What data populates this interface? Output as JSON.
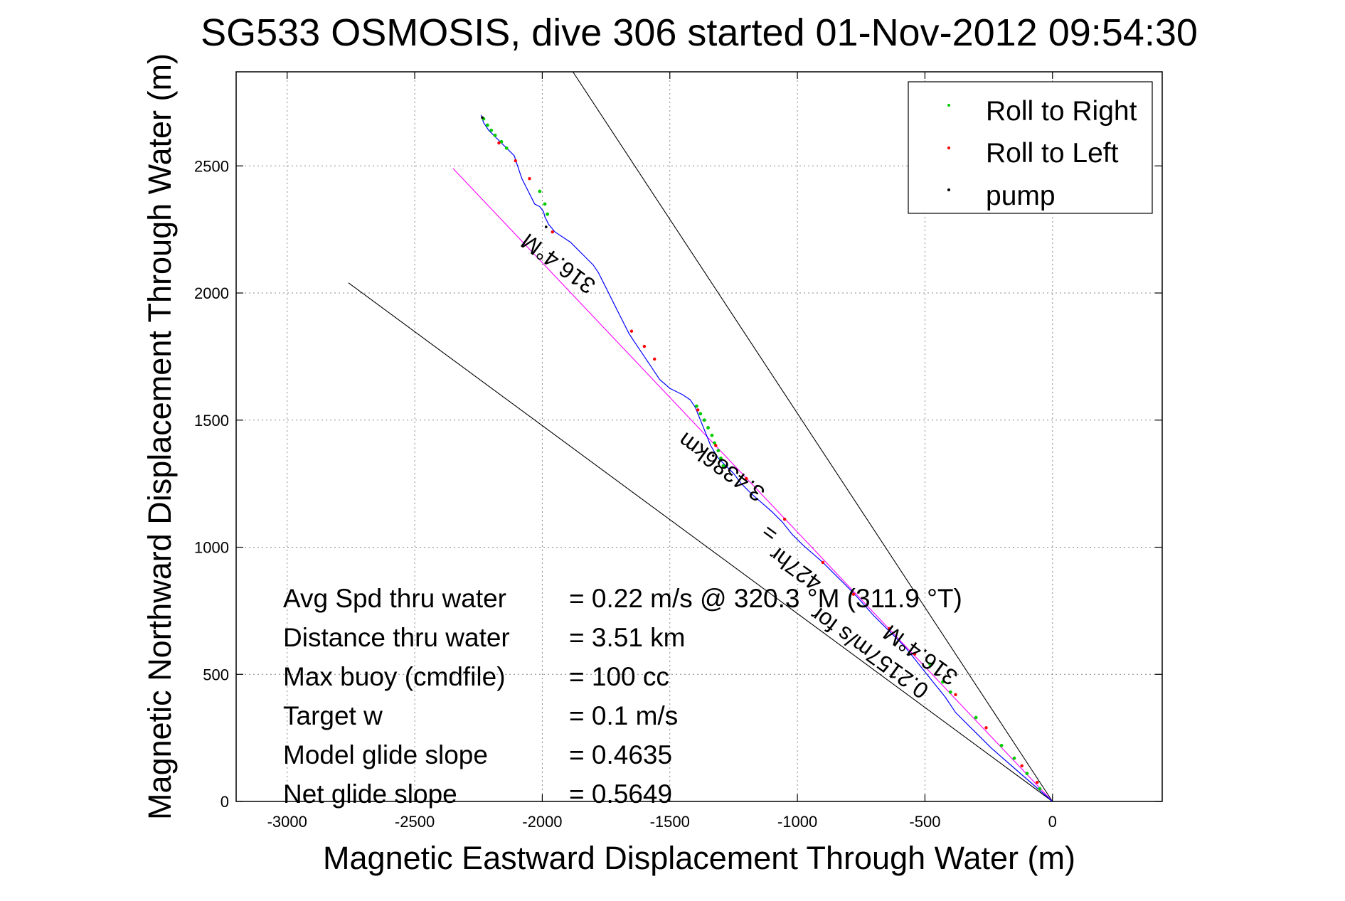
{
  "chart_data": {
    "type": "line",
    "title": "SG533 OSMOSIS, dive 306 started 01-Nov-2012 09:54:30",
    "xlabel": "Magnetic Eastward Displacement Through Water (m)",
    "ylabel": "Magnetic Northward Displacement Through Water (m)",
    "xlim": [
      -3200,
      430
    ],
    "ylim": [
      0,
      2870
    ],
    "xticks": [
      -3000,
      -2500,
      -2000,
      -1500,
      -1000,
      -500,
      0
    ],
    "yticks": [
      0,
      500,
      1000,
      1500,
      2000,
      2500
    ],
    "xtick_labels": [
      "-3000",
      "-2500",
      "-2000",
      "-1500",
      "-1000",
      "-500",
      "0"
    ],
    "ytick_labels": [
      "0",
      "500",
      "1000",
      "1500",
      "2000",
      "2500"
    ],
    "grid": true,
    "legend_position": "top-right",
    "legend": [
      {
        "label": "Roll to Right",
        "color": "#00cc00"
      },
      {
        "label": "Roll to Left",
        "color": "#ff0000"
      },
      {
        "label": "pump",
        "color": "#000000"
      }
    ],
    "series": [
      {
        "name": "track",
        "color": "#0000ff",
        "x": [
          0,
          -40,
          -80,
          -120,
          -160,
          -200,
          -240,
          -280,
          -330,
          -380,
          -420,
          -460,
          -500,
          -540,
          -580,
          -620,
          -660,
          -700,
          -740,
          -780,
          -820,
          -860,
          -900,
          -940,
          -980,
          -1020,
          -1060,
          -1100,
          -1140,
          -1180,
          -1220,
          -1250,
          -1280,
          -1310,
          -1340,
          -1360,
          -1380,
          -1400,
          -1420,
          -1450,
          -1500,
          -1540,
          -1560,
          -1580,
          -1600,
          -1620,
          -1640,
          -1660,
          -1680,
          -1700,
          -1720,
          -1740,
          -1760,
          -1780,
          -1800,
          -1830,
          -1860,
          -1890,
          -1920,
          -1950,
          -1975,
          -1990,
          -1995,
          -2010,
          -2030,
          -2040,
          -2060,
          -2080,
          -2090,
          -2100,
          -2110,
          -2130,
          -2150,
          -2170,
          -2190,
          -2210,
          -2230,
          -2240
        ],
        "y": [
          0,
          35,
          70,
          105,
          140,
          175,
          210,
          250,
          300,
          350,
          410,
          460,
          510,
          560,
          610,
          650,
          690,
          730,
          775,
          820,
          860,
          900,
          940,
          975,
          1010,
          1050,
          1100,
          1140,
          1175,
          1210,
          1250,
          1290,
          1320,
          1350,
          1400,
          1450,
          1500,
          1550,
          1580,
          1600,
          1625,
          1660,
          1690,
          1720,
          1750,
          1780,
          1810,
          1840,
          1880,
          1920,
          1960,
          2000,
          2040,
          2080,
          2110,
          2140,
          2170,
          2200,
          2220,
          2240,
          2270,
          2300,
          2320,
          2340,
          2350,
          2370,
          2410,
          2450,
          2480,
          2510,
          2540,
          2560,
          2580,
          2600,
          2620,
          2640,
          2670,
          2700
        ]
      }
    ],
    "reference_lines": [
      {
        "name": "ref-line-steep",
        "color": "#000000",
        "x": [
          0,
          -1880
        ],
        "y": [
          0,
          2870
        ]
      },
      {
        "name": "ref-line-middle",
        "color": "#ff00ff",
        "x": [
          0,
          -2350
        ],
        "y": [
          0,
          2490
        ]
      },
      {
        "name": "ref-line-shallow",
        "color": "#000000",
        "x": [
          0,
          -2760
        ],
        "y": [
          0,
          2040
        ]
      }
    ],
    "roll_right_points": {
      "color": "#00cc00",
      "x": [
        -2230,
        -2215,
        -2200,
        -2185,
        -2160,
        -2140,
        -2010,
        -1990,
        -1980,
        -1395,
        -1380,
        -1365,
        -1350,
        -1335,
        -1325,
        -1310,
        -1300,
        -1290,
        -480,
        -430,
        -400,
        -300,
        -200,
        -150,
        -100,
        -50
      ],
      "y": [
        2685,
        2660,
        2640,
        2620,
        2595,
        2570,
        2400,
        2350,
        2310,
        1555,
        1525,
        1500,
        1470,
        1440,
        1410,
        1380,
        1350,
        1320,
        540,
        470,
        430,
        330,
        220,
        170,
        110,
        50
      ]
    },
    "roll_left_points": {
      "color": "#ff0000",
      "x": [
        -2170,
        -2105,
        -2050,
        -1960,
        -1650,
        -1600,
        -1560,
        -1390,
        -1320,
        -1200,
        -1050,
        -900,
        -780,
        -640,
        -540,
        -380,
        -260,
        -120,
        -60
      ],
      "y": [
        2590,
        2520,
        2450,
        2240,
        1850,
        1790,
        1740,
        1540,
        1400,
        1270,
        1110,
        940,
        815,
        680,
        580,
        420,
        290,
        140,
        75
      ]
    },
    "pump_points": {
      "color": "#000000",
      "x": [
        -1985,
        -1330,
        -2235
      ],
      "y": [
        2260,
        1360,
        2690
      ]
    },
    "annotations": [
      {
        "name": "annot-heading-top",
        "text": "316.4°M",
        "x": -1920,
        "y": 2140,
        "angle": 36
      },
      {
        "name": "annot-distance",
        "text": "3.4386km",
        "x": -1280,
        "y": 1340,
        "angle": 36
      },
      {
        "name": "annot-time",
        "text": "427hr",
        "x": -990,
        "y": 940,
        "angle": 36
      },
      {
        "name": "annot-speed",
        "text": "0.2157m/s for",
        "x": -700,
        "y": 610,
        "angle": 36
      },
      {
        "name": "annot-equals",
        "text": "=",
        "x": -1090,
        "y": 1080,
        "angle": 36
      },
      {
        "name": "annot-heading-bottom",
        "text": "316.4°M",
        "x": -500,
        "y": 600,
        "angle": 36
      }
    ],
    "stats": [
      {
        "label": "Avg Spd thru water",
        "value": "=  0.22 m/s @ 320.3 °M (311.9 °T)"
      },
      {
        "label": "Distance thru water",
        "value": "=  3.51 km"
      },
      {
        "label": "Max buoy (cmdfile)",
        "value": "= 100 cc"
      },
      {
        "label": "Target w",
        "value": "= 0.1 m/s"
      },
      {
        "label": "Model glide slope",
        "value": "= 0.4635"
      },
      {
        "label": "Net glide slope",
        "value": "= 0.5649"
      }
    ]
  }
}
